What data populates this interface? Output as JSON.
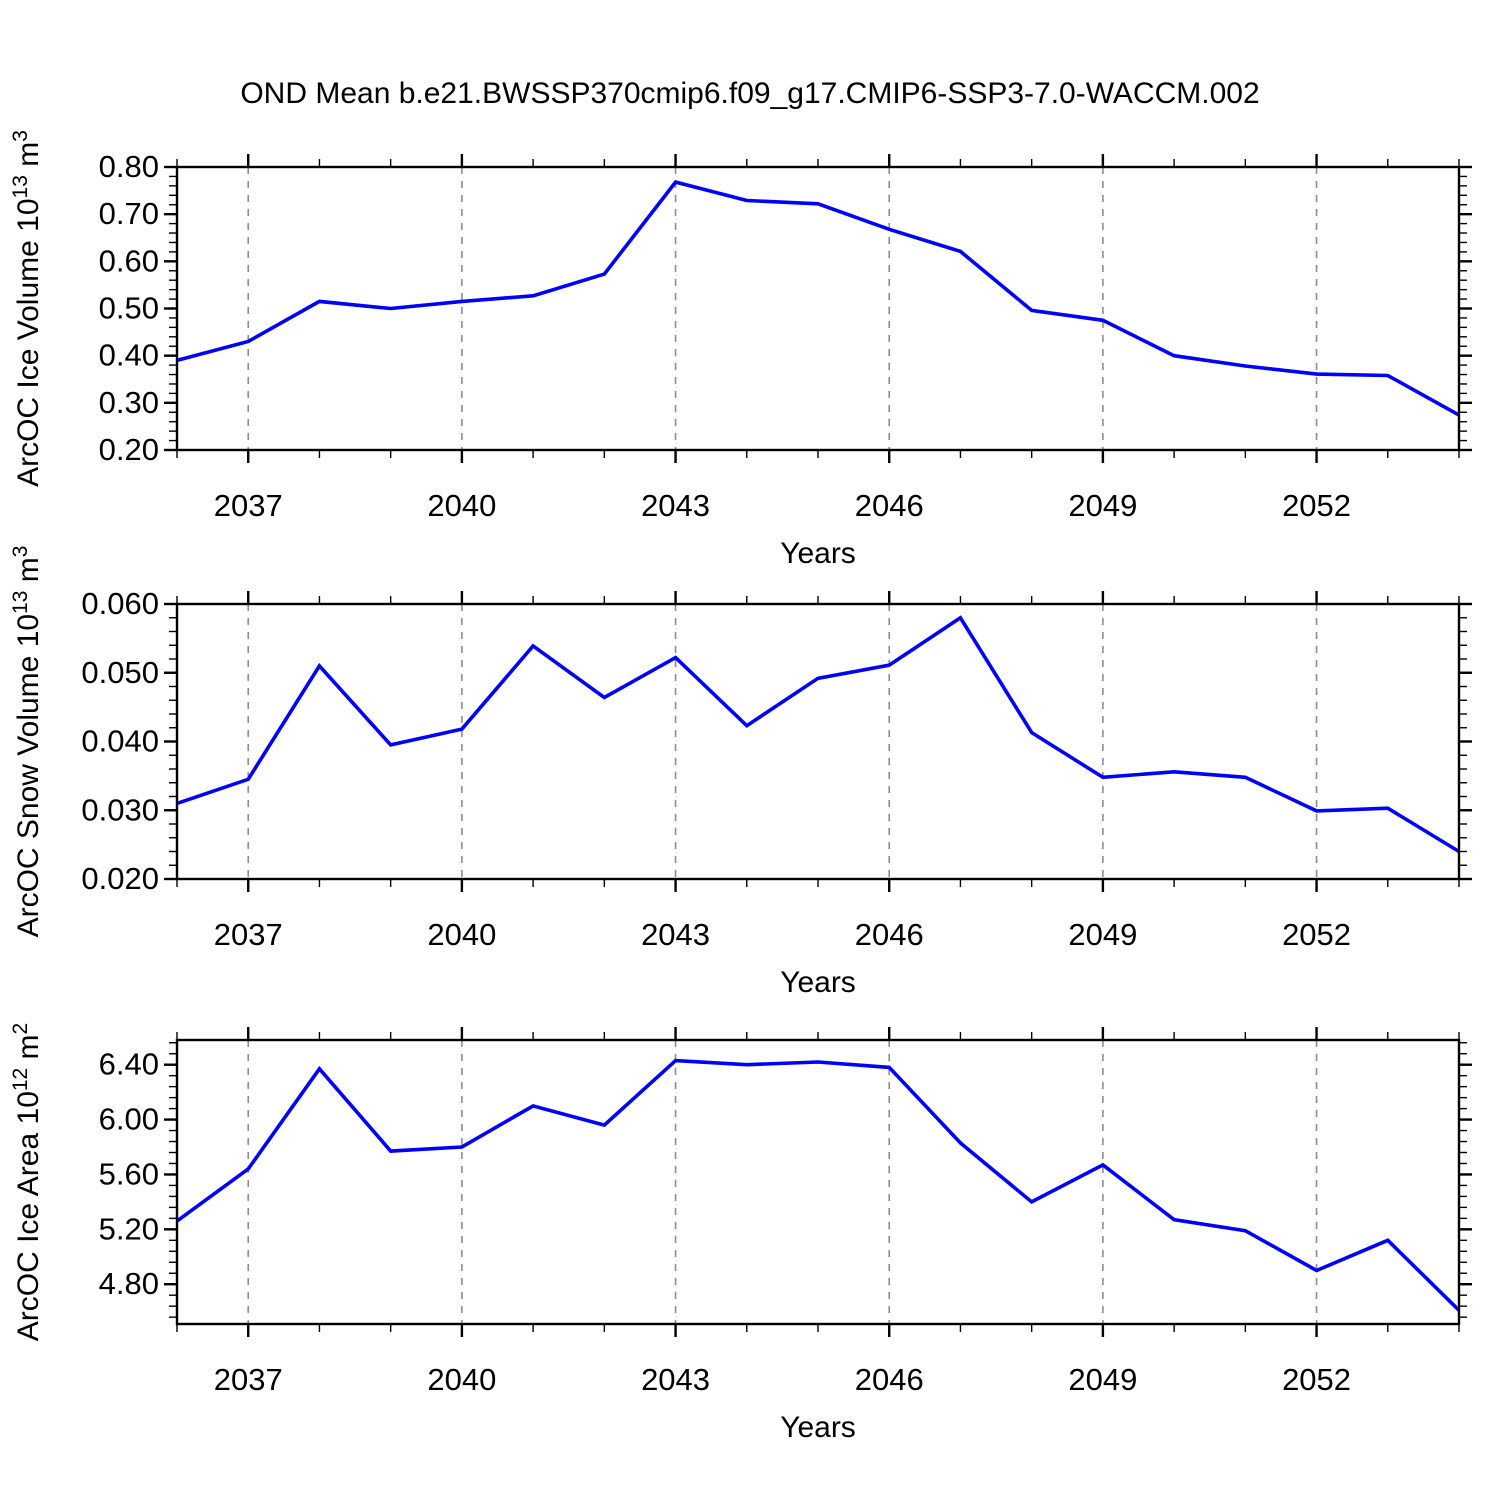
{
  "title": "OND Mean b.e21.BWSSP370cmip6.f09_g17.CMIP6-SSP3-7.0-WACCM.002",
  "figure": {
    "background": "#ffffff",
    "line_color": "#0000ff",
    "grid_color": "#8c8c8c",
    "axis_color": "#000000"
  },
  "chart_data": [
    {
      "type": "line",
      "name": "arcoc-ice-volume",
      "xlabel": "Years",
      "ylabel_text": "ArcOC Ice Volume 10^13 m^3",
      "ylabel_parts": [
        {
          "text": "ArcOC Ice Volume 10"
        },
        {
          "text": "13",
          "sup": true
        },
        {
          "text": " m"
        },
        {
          "text": "3",
          "sup": true
        }
      ],
      "x": [
        2036,
        2037,
        2038,
        2039,
        2040,
        2041,
        2042,
        2043,
        2044,
        2045,
        2046,
        2047,
        2048,
        2049,
        2050,
        2051,
        2052,
        2053,
        2054
      ],
      "values": [
        0.39,
        0.43,
        0.515,
        0.5,
        0.515,
        0.527,
        0.573,
        0.768,
        0.729,
        0.722,
        0.668,
        0.621,
        0.496,
        0.475,
        0.4,
        0.378,
        0.361,
        0.358,
        0.274
      ],
      "xlim": [
        2036,
        2054
      ],
      "ylim": [
        0.2,
        0.8
      ],
      "xticks": {
        "major_values": [
          2037,
          2040,
          2043,
          2046,
          2049,
          2052
        ],
        "major_labels": [
          "2037",
          "2040",
          "2043",
          "2046",
          "2049",
          "2052"
        ],
        "minor_step": 1
      },
      "yticks": {
        "major_values": [
          0.2,
          0.3,
          0.4,
          0.5,
          0.6,
          0.7,
          0.8
        ],
        "major_labels": [
          "0.20",
          "0.30",
          "0.40",
          "0.50",
          "0.60",
          "0.70",
          "0.80"
        ],
        "minor_step": 0.02
      },
      "grid": {
        "vertical_dashed_at_major_x": true,
        "horizontal": false
      }
    },
    {
      "type": "line",
      "name": "arcoc-snow-volume",
      "xlabel": "Years",
      "ylabel_text": "ArcOC Snow Volume 10^13 m^3",
      "ylabel_parts": [
        {
          "text": "ArcOC Snow Volume 10"
        },
        {
          "text": "13",
          "sup": true
        },
        {
          "text": " m"
        },
        {
          "text": "3",
          "sup": true
        }
      ],
      "x": [
        2036,
        2037,
        2038,
        2039,
        2040,
        2041,
        2042,
        2043,
        2044,
        2045,
        2046,
        2047,
        2048,
        2049,
        2050,
        2051,
        2052,
        2053,
        2054
      ],
      "values": [
        0.031,
        0.0345,
        0.051,
        0.0395,
        0.0418,
        0.0539,
        0.0464,
        0.0522,
        0.0423,
        0.0492,
        0.0511,
        0.058,
        0.0413,
        0.0348,
        0.0356,
        0.0348,
        0.0299,
        0.0303,
        0.024
      ],
      "xlim": [
        2036,
        2054
      ],
      "ylim": [
        0.02,
        0.06
      ],
      "xticks": {
        "major_values": [
          2037,
          2040,
          2043,
          2046,
          2049,
          2052
        ],
        "major_labels": [
          "2037",
          "2040",
          "2043",
          "2046",
          "2049",
          "2052"
        ],
        "minor_step": 1
      },
      "yticks": {
        "major_values": [
          0.02,
          0.03,
          0.04,
          0.05,
          0.06
        ],
        "major_labels": [
          "0.020",
          "0.030",
          "0.040",
          "0.050",
          "0.060"
        ],
        "minor_step": 0.002
      },
      "grid": {
        "vertical_dashed_at_major_x": true,
        "horizontal": false
      }
    },
    {
      "type": "line",
      "name": "arcoc-ice-area",
      "xlabel": "Years",
      "ylabel_text": "ArcOC Ice Area 10^12 m^2",
      "ylabel_parts": [
        {
          "text": "ArcOC Ice Area 10"
        },
        {
          "text": "12",
          "sup": true
        },
        {
          "text": " m"
        },
        {
          "text": "2",
          "sup": true
        }
      ],
      "x": [
        2036,
        2037,
        2038,
        2039,
        2040,
        2041,
        2042,
        2043,
        2044,
        2045,
        2046,
        2047,
        2048,
        2049,
        2050,
        2051,
        2052,
        2053,
        2054
      ],
      "values": [
        5.26,
        5.64,
        6.37,
        5.77,
        5.8,
        6.1,
        5.96,
        6.43,
        6.4,
        6.42,
        6.38,
        5.83,
        5.4,
        5.67,
        5.27,
        5.19,
        4.9,
        5.12,
        4.61
      ],
      "xlim": [
        2036,
        2054
      ],
      "ylim": [
        4.51,
        6.58
      ],
      "xticks": {
        "major_values": [
          2037,
          2040,
          2043,
          2046,
          2049,
          2052
        ],
        "major_labels": [
          "2037",
          "2040",
          "2043",
          "2046",
          "2049",
          "2052"
        ],
        "minor_step": 1
      },
      "yticks": {
        "major_values": [
          4.8,
          5.2,
          5.6,
          6.0,
          6.4
        ],
        "major_labels": [
          "4.80",
          "5.20",
          "5.60",
          "6.00",
          "6.40"
        ],
        "minor_step": 0.08
      },
      "grid": {
        "vertical_dashed_at_major_x": true,
        "horizontal": false
      }
    }
  ]
}
